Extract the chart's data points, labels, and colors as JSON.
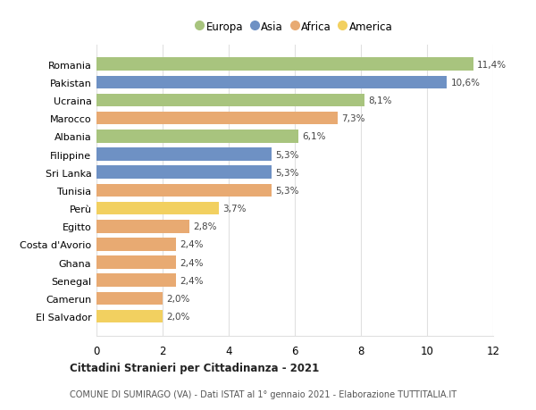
{
  "countries": [
    "Romania",
    "Pakistan",
    "Ucraina",
    "Marocco",
    "Albania",
    "Filippine",
    "Sri Lanka",
    "Tunisia",
    "Perù",
    "Egitto",
    "Costa d'Avorio",
    "Ghana",
    "Senegal",
    "Camerun",
    "El Salvador"
  ],
  "values": [
    11.4,
    10.6,
    8.1,
    7.3,
    6.1,
    5.3,
    5.3,
    5.3,
    3.7,
    2.8,
    2.4,
    2.4,
    2.4,
    2.0,
    2.0
  ],
  "labels": [
    "11,4%",
    "10,6%",
    "8,1%",
    "7,3%",
    "6,1%",
    "5,3%",
    "5,3%",
    "5,3%",
    "3,7%",
    "2,8%",
    "2,4%",
    "2,4%",
    "2,4%",
    "2,0%",
    "2,0%"
  ],
  "continents": [
    "Europa",
    "Asia",
    "Europa",
    "Africa",
    "Europa",
    "Asia",
    "Asia",
    "Africa",
    "America",
    "Africa",
    "Africa",
    "Africa",
    "Africa",
    "Africa",
    "America"
  ],
  "continent_colors": {
    "Europa": "#a8c47e",
    "Asia": "#6e91c4",
    "Africa": "#e8aa72",
    "America": "#f2d060"
  },
  "legend_order": [
    "Europa",
    "Asia",
    "Africa",
    "America"
  ],
  "title": "Cittadini Stranieri per Cittadinanza - 2021",
  "subtitle": "COMUNE DI SUMIRAGO (VA) - Dati ISTAT al 1° gennaio 2021 - Elaborazione TUTTITALIA.IT",
  "xlim": [
    0,
    12
  ],
  "xticks": [
    0,
    2,
    4,
    6,
    8,
    10,
    12
  ],
  "background_color": "#ffffff",
  "grid_color": "#e0e0e0"
}
